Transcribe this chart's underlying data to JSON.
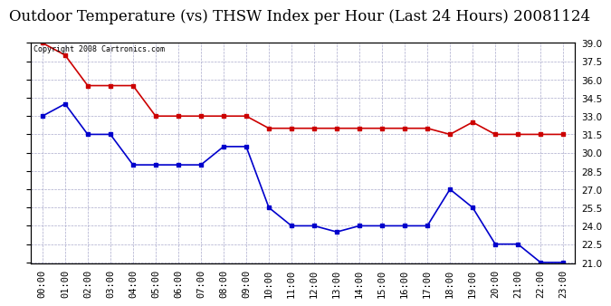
{
  "title": "Outdoor Temperature (vs) THSW Index per Hour (Last 24 Hours) 20081124",
  "copyright_text": "Copyright 2008 Cartronics.com",
  "x_labels": [
    "00:00",
    "01:00",
    "02:00",
    "03:00",
    "04:00",
    "05:00",
    "06:00",
    "07:00",
    "08:00",
    "09:00",
    "10:00",
    "11:00",
    "12:00",
    "13:00",
    "14:00",
    "15:00",
    "16:00",
    "17:00",
    "18:00",
    "19:00",
    "20:00",
    "21:00",
    "22:00",
    "23:00"
  ],
  "red_data": [
    39.0,
    38.0,
    35.5,
    35.5,
    35.5,
    33.0,
    33.0,
    33.0,
    33.0,
    33.0,
    32.0,
    32.0,
    32.0,
    32.0,
    32.0,
    32.0,
    32.0,
    32.0,
    31.5,
    32.5,
    31.5,
    31.5,
    31.5,
    31.5
  ],
  "blue_data": [
    33.0,
    34.0,
    31.5,
    31.5,
    29.0,
    29.0,
    29.0,
    29.0,
    30.5,
    30.5,
    25.5,
    24.0,
    24.0,
    23.5,
    24.0,
    24.0,
    24.0,
    24.0,
    27.0,
    25.5,
    22.5,
    22.5,
    21.0,
    21.0
  ],
  "red_color": "#cc0000",
  "blue_color": "#0000cc",
  "bg_color": "#ffffff",
  "grid_color": "#aaaacc",
  "ylim_min": 21.0,
  "ylim_max": 39.0,
  "ytick_step": 1.5,
  "title_fontsize": 12,
  "label_fontsize": 7.5,
  "copyright_fontsize": 6.0,
  "marker": "s",
  "marker_size": 3.0,
  "linewidth": 1.2
}
